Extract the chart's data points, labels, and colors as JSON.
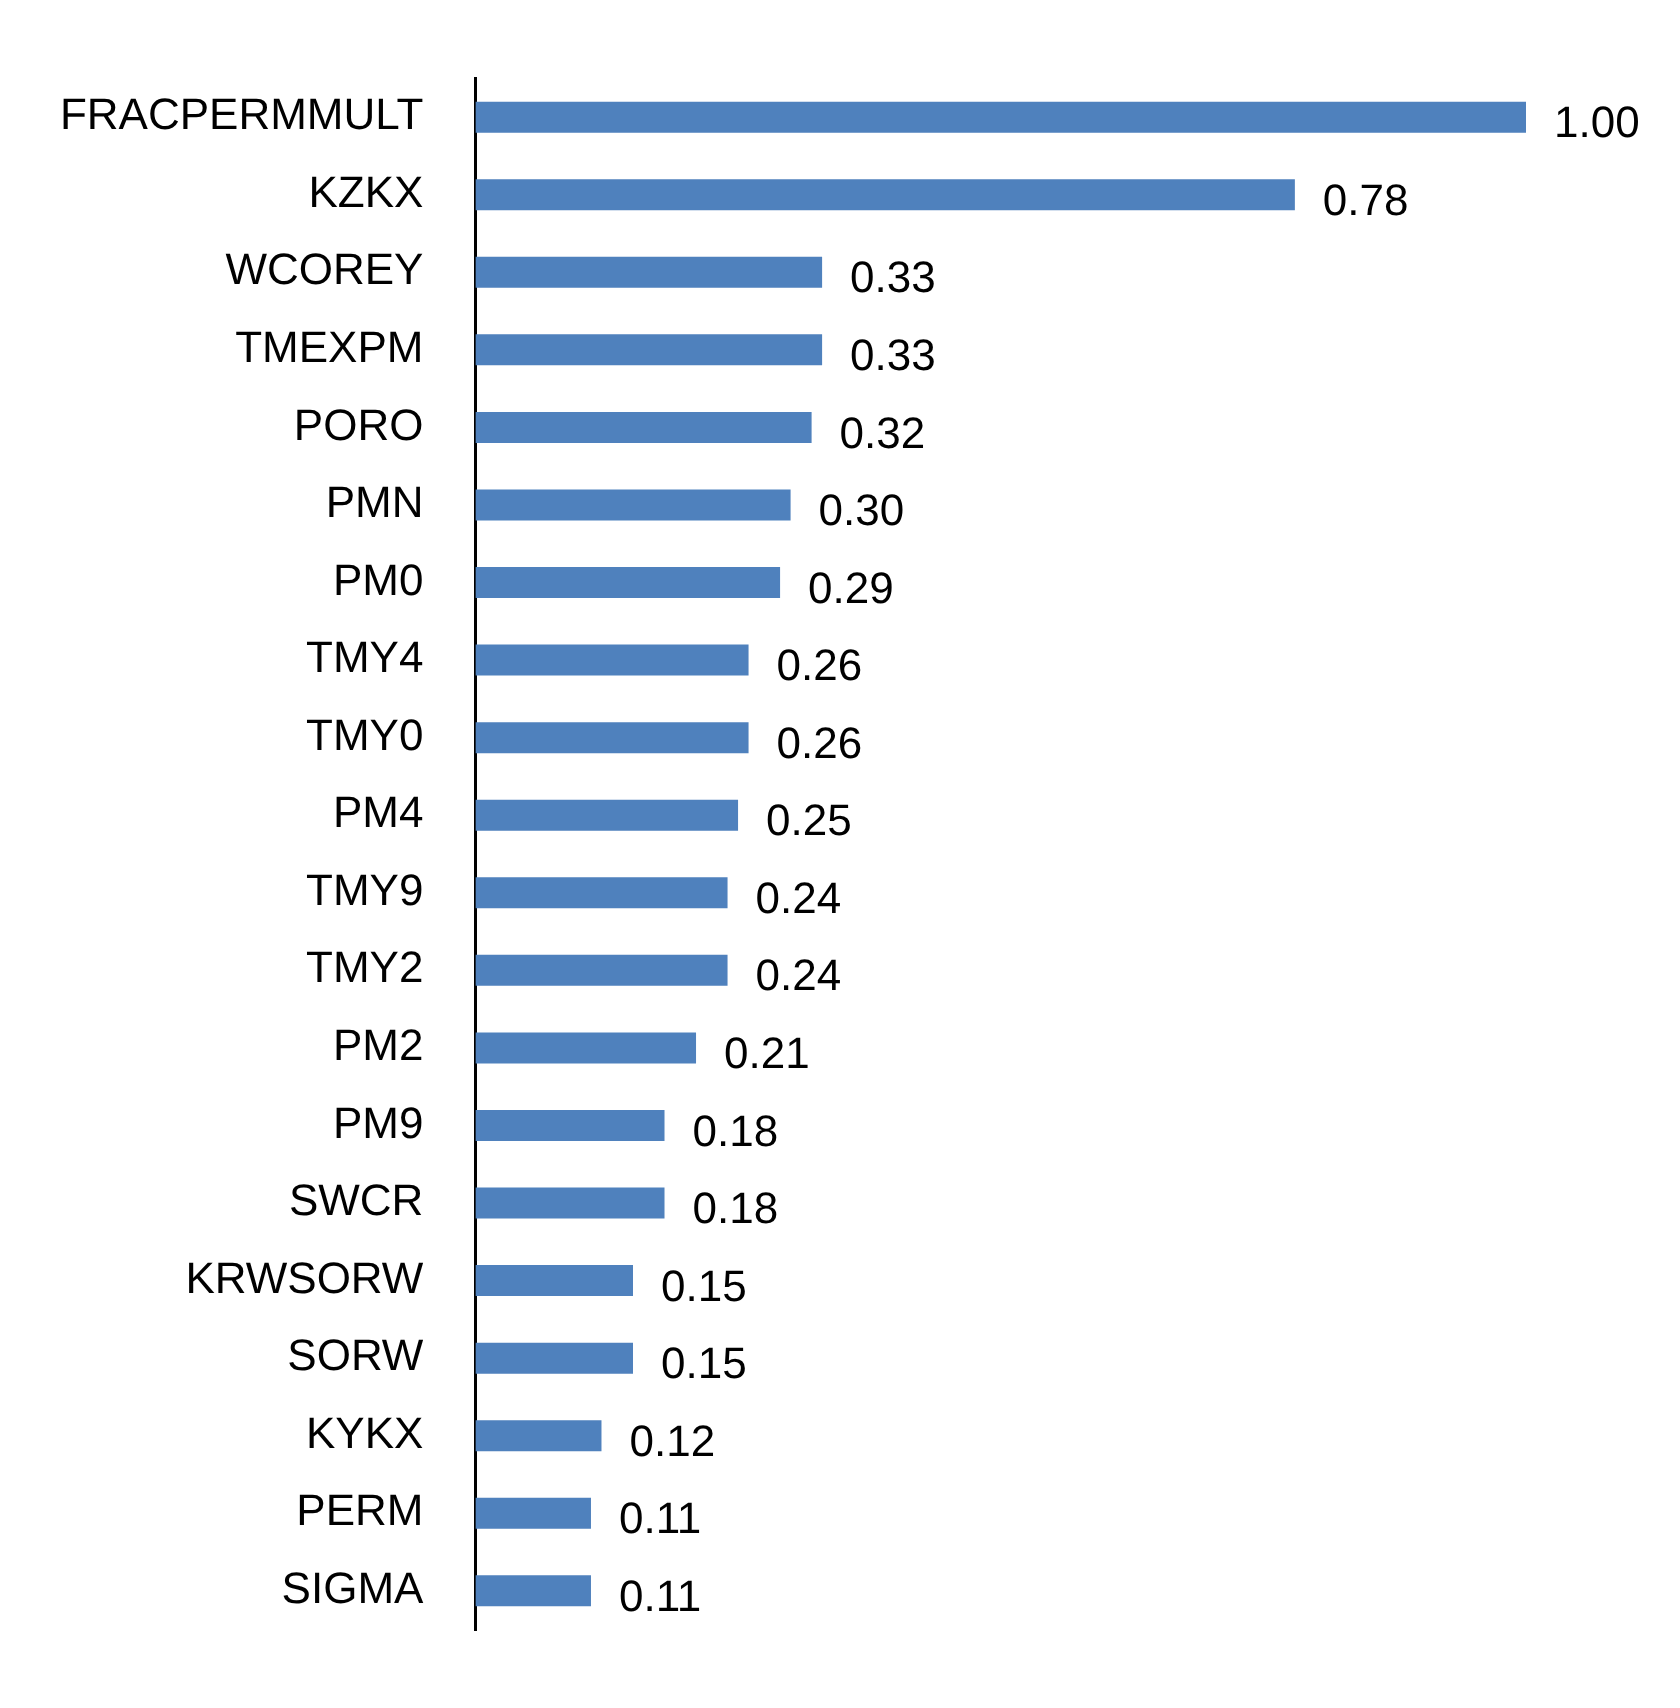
{
  "chart_data": {
    "type": "bar",
    "orientation": "horizontal",
    "categories": [
      "FRACPERMMULT",
      "KZKX",
      "WCOREY",
      "TMEXPM",
      "PORO",
      "PMN",
      "PM0",
      "TMY4",
      "TMY0",
      "PM4",
      "TMY9",
      "TMY2",
      "PM2",
      "PM9",
      "SWCR",
      "KRWSORW",
      "SORW",
      "KYKX",
      "PERM",
      "SIGMA"
    ],
    "values": [
      1.0,
      0.78,
      0.33,
      0.33,
      0.32,
      0.3,
      0.29,
      0.26,
      0.26,
      0.25,
      0.24,
      0.24,
      0.21,
      0.18,
      0.18,
      0.15,
      0.15,
      0.12,
      0.11,
      0.11
    ],
    "value_labels": [
      "1.00",
      "0.78",
      "0.33",
      "0.33",
      "0.32",
      "0.30",
      "0.29",
      "0.26",
      "0.26",
      "0.25",
      "0.24",
      "0.24",
      "0.21",
      "0.18",
      "0.18",
      "0.15",
      "0.15",
      "0.12",
      "0.11",
      "0.11"
    ],
    "color": "#4f81bd",
    "grid": false,
    "legend": false,
    "tick_labels": "y"
  }
}
